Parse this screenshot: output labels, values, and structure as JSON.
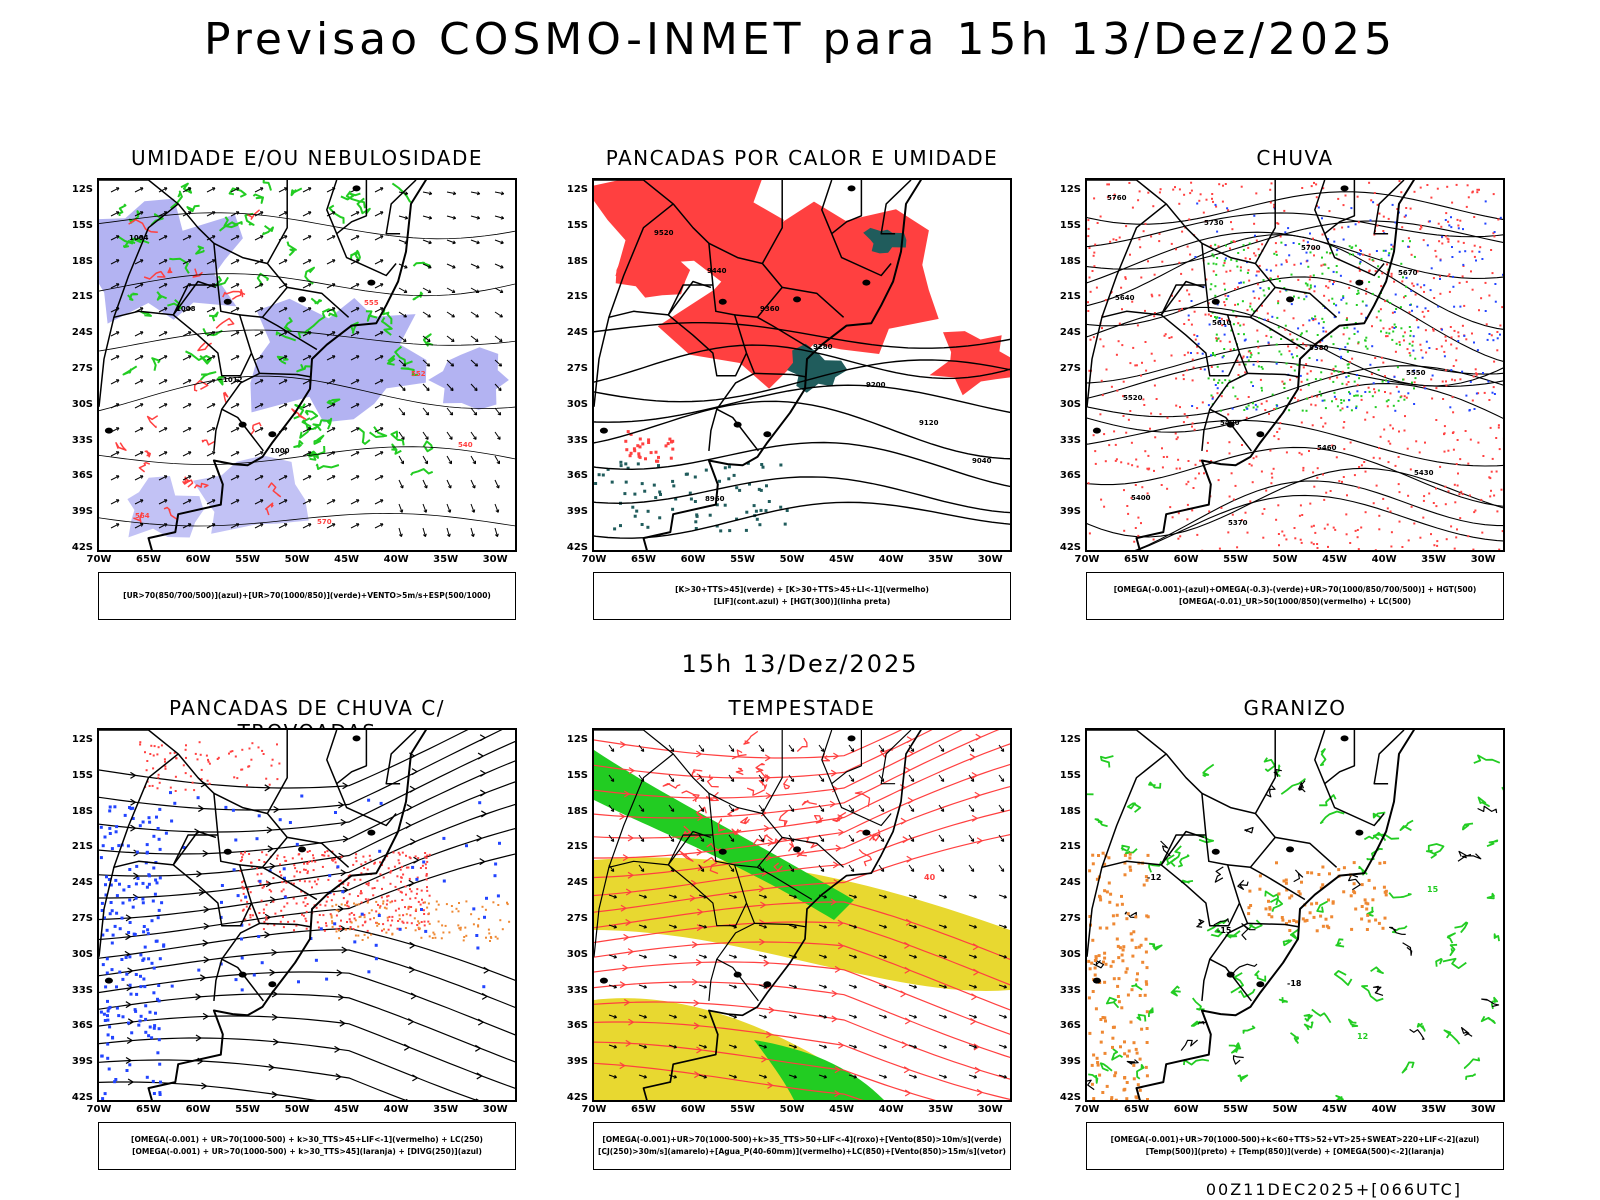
{
  "title": "Previsao COSMO-INMET  para 15h 13/Dez/2025",
  "mid_title": "15h 13/Dez/2025",
  "footer": "00Z11DEC2025+[066UTC]",
  "axes": {
    "lat_labels": [
      "12S",
      "15S",
      "18S",
      "21S",
      "24S",
      "27S",
      "30S",
      "33S",
      "36S",
      "39S",
      "42S"
    ],
    "lon_labels": [
      "70W",
      "65W",
      "60W",
      "55W",
      "50W",
      "45W",
      "40W",
      "35W",
      "30W"
    ]
  },
  "colors": {
    "blue_shade": "#9999ee",
    "green": "#22cc22",
    "red": "#ff4040",
    "dark_teal": "#205c5c",
    "yellow": "#e8d830",
    "orange": "#ee8833",
    "blue_dot": "#2244ff"
  },
  "panels": [
    {
      "id": "umidade",
      "title": "UMIDADE E/OU NEBULOSIDADE",
      "legend": [
        "[UR>70(850/700/500)](azul)+[UR>70(1000/850)](verde)+VENTO>5m/s+ESP(500/1000)"
      ],
      "labels": [
        "1004",
        "1008",
        "1012",
        "1000",
        "570",
        "555",
        "552",
        "540",
        "564"
      ]
    },
    {
      "id": "pancadas_calor",
      "title": "PANCADAS POR CALOR E UMIDADE",
      "legend": [
        "[K>30+TTS>45](verde) + [K>30+TTS>45+LI<-1](vermelho)",
        "[LIF](cont.azul) + [HGT(300)](linha preta)"
      ],
      "labels": [
        "9520",
        "9440",
        "9360",
        "9280",
        "9200",
        "9120",
        "9040",
        "8960"
      ]
    },
    {
      "id": "chuva",
      "title": "CHUVA",
      "legend": [
        "[OMEGA(-0.001)-(azul)+OMEGA(-0.3)-(verde)+UR>70(1000/850/700/500)] + HGT(500)",
        "[OMEGA(-0.01)_UR>50(1000/850)(vermelho) + LC(500)"
      ],
      "labels": [
        "5760",
        "5730",
        "5700",
        "5670",
        "5640",
        "5610",
        "5580",
        "5550",
        "5520",
        "5490",
        "5460",
        "5430",
        "5400",
        "5370"
      ]
    },
    {
      "id": "trovoadas",
      "title": "PANCADAS DE CHUVA C/ TROVOADAS",
      "legend": [
        "[OMEGA(-0.001) + UR>70(1000-500) + k>30_TTS>45+LIF<-1](vermelho) + LC(250)",
        "[OMEGA(-0.001) + UR>70(1000-500) + k>30_TTS>45](laranja) + [DIVG(250)](azul)"
      ],
      "labels": []
    },
    {
      "id": "tempestade",
      "title": "TEMPESTADE",
      "legend": [
        "[OMEGA(-0.001)+UR>70(1000-500)+k>35_TTS>50+LIF<-4](roxo)+[Vento(850)>10m/s](verde)",
        "[CJ(250)>30m/s](amarelo)+[Agua_P(40-60mm)](vermelho)+LC(850)+[Vento(850)>15m/s](vetor)"
      ],
      "labels": [
        "40"
      ]
    },
    {
      "id": "granizo",
      "title": "GRANIZO",
      "legend": [
        "[OMEGA(-0.001)+UR>70(1000-500)+k<60+TTS>52+VT>25+SWEAT>220+LIF<-2](azul)",
        "[Temp(500)](preto) + [Temp(850)](verde) + [OMEGA(500)<-2](laranja)"
      ],
      "labels": [
        "-12",
        "-15",
        "-18",
        "12",
        "15"
      ]
    }
  ]
}
